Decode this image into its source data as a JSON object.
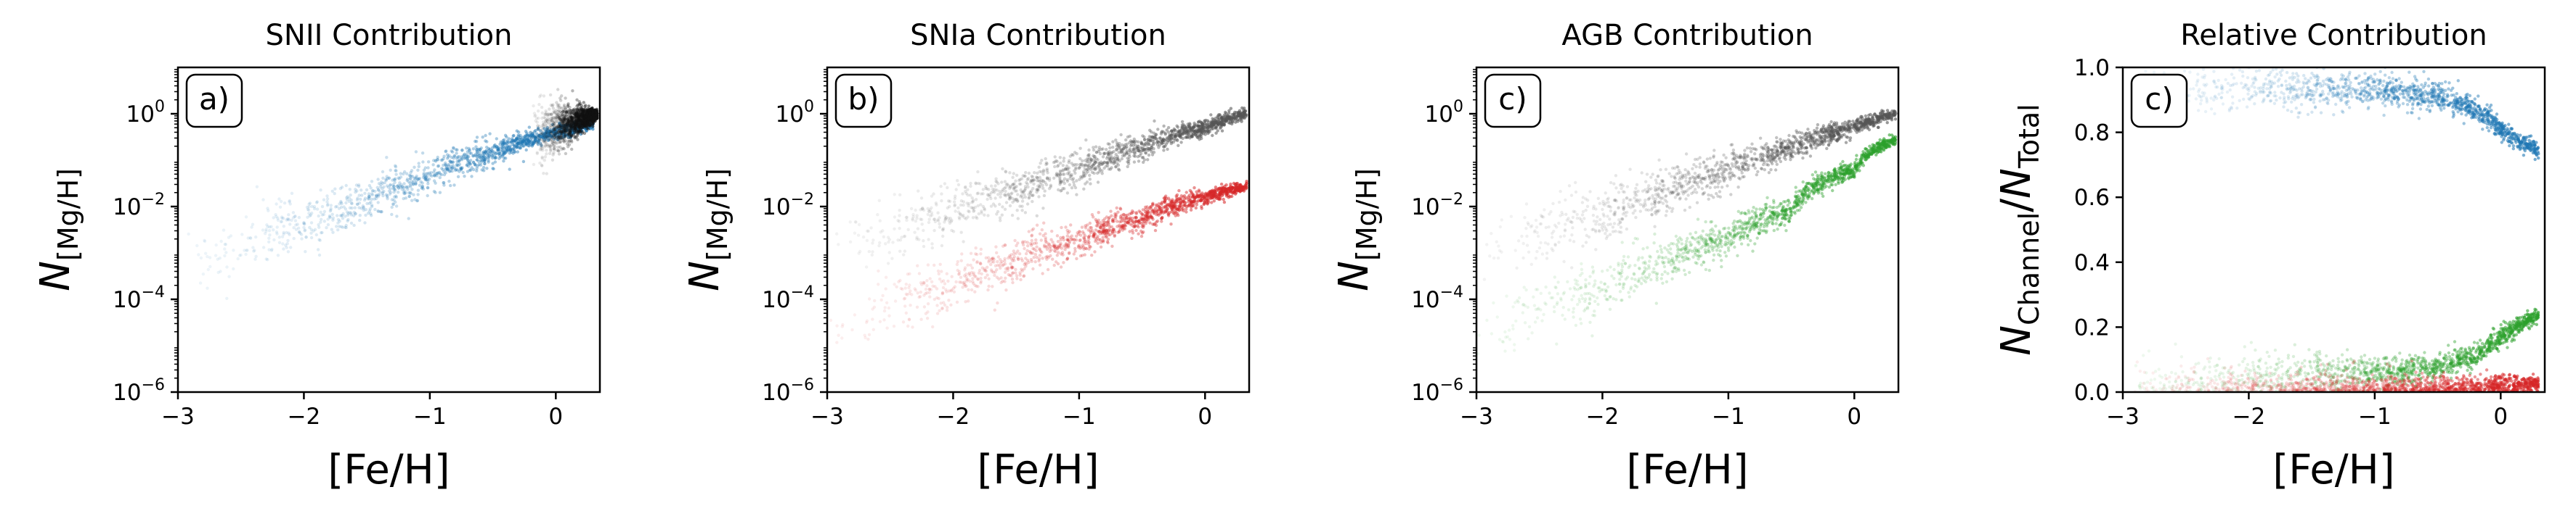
{
  "figure": {
    "panels": [
      {
        "id": "snii",
        "title": "SNII Contribution",
        "label": "a)"
      },
      {
        "id": "snia",
        "title": "SNIa Contribution",
        "label": "b)"
      },
      {
        "id": "agb",
        "title": "AGB Contribution",
        "label": "c)"
      },
      {
        "id": "relative",
        "title": "Relative Contribution",
        "label": "c)"
      }
    ]
  },
  "chart_data": [
    {
      "type": "scatter",
      "title": "SNII Contribution",
      "panel_label": "a)",
      "xlabel": "[Fe/H]",
      "ylabel": "N_[Mg/H]",
      "ylabel_parts": {
        "base": "N",
        "sub": "[Mg/H]"
      },
      "xlim": [
        -3,
        0.35
      ],
      "ylim": [
        1e-06,
        10
      ],
      "yscale": "log",
      "xticks": [
        -3,
        -2,
        -1,
        0
      ],
      "xtick_labels": [
        "−3",
        "−2",
        "−1",
        "0"
      ],
      "yticks": [
        1e-06,
        0.0001,
        0.01,
        1
      ],
      "ytick_labels": [
        {
          "base": "10",
          "exp": "−6"
        },
        {
          "base": "10",
          "exp": "−4"
        },
        {
          "base": "10",
          "exp": "−2"
        },
        {
          "base": "10",
          "exp": "0"
        }
      ],
      "series": [
        {
          "color": "#1f77b4",
          "x": [
            -3.0,
            -2.5,
            -2.0,
            -1.5,
            -1.0,
            -0.5,
            0.0,
            0.3
          ],
          "y": [
            0.0004,
            0.0012,
            0.004,
            0.013,
            0.045,
            0.14,
            0.38,
            0.6
          ]
        },
        {
          "color": "#111111",
          "x": [
            -0.2,
            0.0,
            0.2,
            0.33
          ],
          "y": [
            0.3,
            0.48,
            0.75,
            1.0
          ]
        }
      ]
    },
    {
      "type": "scatter",
      "title": "SNIa Contribution",
      "panel_label": "b)",
      "xlabel": "[Fe/H]",
      "ylabel": "N_[Mg/H]",
      "ylabel_parts": {
        "base": "N",
        "sub": "[Mg/H]"
      },
      "xlim": [
        -3,
        0.35
      ],
      "ylim": [
        1e-06,
        10
      ],
      "yscale": "log",
      "xticks": [
        -3,
        -2,
        -1,
        0
      ],
      "xtick_labels": [
        "−3",
        "−2",
        "−1",
        "0"
      ],
      "yticks": [
        1e-06,
        0.0001,
        0.01,
        1
      ],
      "ytick_labels": [
        {
          "base": "10",
          "exp": "−6"
        },
        {
          "base": "10",
          "exp": "−4"
        },
        {
          "base": "10",
          "exp": "−2"
        },
        {
          "base": "10",
          "exp": "0"
        }
      ],
      "series": [
        {
          "color": "#555555",
          "x": [
            -3.0,
            -2.5,
            -2.0,
            -1.5,
            -1.0,
            -0.5,
            0.0,
            0.33
          ],
          "y": [
            0.0009,
            0.0025,
            0.007,
            0.02,
            0.06,
            0.18,
            0.5,
            1.0
          ]
        },
        {
          "color": "#d62728",
          "x": [
            -3.0,
            -2.5,
            -2.0,
            -1.5,
            -1.0,
            -0.5,
            0.0,
            0.33
          ],
          "y": [
            2e-05,
            6e-05,
            0.00018,
            0.0006,
            0.0018,
            0.0055,
            0.015,
            0.027
          ]
        }
      ]
    },
    {
      "type": "scatter",
      "title": "AGB Contribution",
      "panel_label": "c)",
      "xlabel": "[Fe/H]",
      "ylabel": "N_[Mg/H]",
      "ylabel_parts": {
        "base": "N",
        "sub": "[Mg/H]"
      },
      "xlim": [
        -3,
        0.35
      ],
      "ylim": [
        1e-06,
        10
      ],
      "yscale": "log",
      "xticks": [
        -3,
        -2,
        -1,
        0
      ],
      "xtick_labels": [
        "−3",
        "−2",
        "−1",
        "0"
      ],
      "yticks": [
        1e-06,
        0.0001,
        0.01,
        1
      ],
      "ytick_labels": [
        {
          "base": "10",
          "exp": "−6"
        },
        {
          "base": "10",
          "exp": "−4"
        },
        {
          "base": "10",
          "exp": "−2"
        },
        {
          "base": "10",
          "exp": "0"
        }
      ],
      "series": [
        {
          "color": "#555555",
          "x": [
            -3.0,
            -2.5,
            -2.0,
            -1.5,
            -1.0,
            -0.5,
            0.0,
            0.33
          ],
          "y": [
            0.0009,
            0.0025,
            0.007,
            0.02,
            0.06,
            0.18,
            0.5,
            1.0
          ]
        },
        {
          "color": "#2ca02c",
          "x": [
            -3.0,
            -2.5,
            -2.0,
            -1.5,
            -1.0,
            -0.5,
            0.0,
            0.33
          ],
          "y": [
            2e-05,
            6e-05,
            0.00015,
            0.0006,
            0.002,
            0.008,
            0.06,
            0.28
          ]
        }
      ]
    },
    {
      "type": "scatter",
      "title": "Relative Contribution",
      "panel_label": "c)",
      "xlabel": "[Fe/H]",
      "ylabel": "N_Channel/N_Total",
      "ylabel_parts": {
        "base": "N",
        "sub": "Channel",
        "sep": "/",
        "base2": "N",
        "sub2": "Total"
      },
      "xlim": [
        -3,
        0.35
      ],
      "ylim": [
        0.0,
        1.0
      ],
      "yscale": "linear",
      "xticks": [
        -3,
        -2,
        -1,
        0
      ],
      "xtick_labels": [
        "−3",
        "−2",
        "−1",
        "0"
      ],
      "yticks": [
        0.0,
        0.2,
        0.4,
        0.6,
        0.8,
        1.0
      ],
      "ytick_labels": [
        "0.0",
        "0.2",
        "0.4",
        "0.6",
        "0.8",
        "1.0"
      ],
      "series": [
        {
          "color": "#1f77b4",
          "x": [
            -3.0,
            -2.5,
            -2.0,
            -1.5,
            -1.0,
            -0.5,
            -0.2,
            0.0,
            0.3
          ],
          "y": [
            0.94,
            0.94,
            0.94,
            0.93,
            0.93,
            0.91,
            0.87,
            0.81,
            0.74
          ]
        },
        {
          "color": "#2ca02c",
          "x": [
            -3.0,
            -2.5,
            -2.0,
            -1.5,
            -1.0,
            -0.5,
            -0.2,
            0.0,
            0.3
          ],
          "y": [
            0.02,
            0.03,
            0.05,
            0.06,
            0.06,
            0.08,
            0.11,
            0.17,
            0.24
          ]
        },
        {
          "color": "#d62728",
          "x": [
            -3.0,
            -2.0,
            -1.0,
            -0.5,
            0.0,
            0.3
          ],
          "y": [
            0.003,
            0.005,
            0.007,
            0.01,
            0.02,
            0.025
          ]
        }
      ]
    }
  ]
}
